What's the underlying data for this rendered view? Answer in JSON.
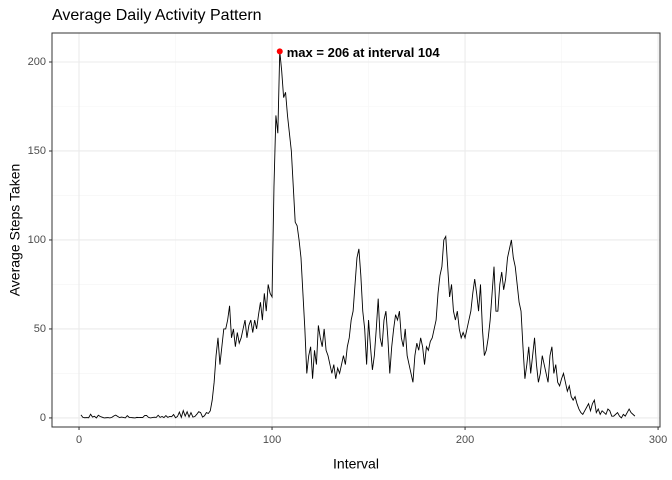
{
  "chart_data": {
    "type": "line",
    "title": "Average Daily Activity Pattern",
    "x_label": "Interval",
    "y_label": "Average Steps Taken",
    "annotation": "max = 206 at interval 104",
    "highlight_index": 103,
    "highlight_color": "#ff0000",
    "xlim": [
      -14,
      301
    ],
    "ylim": [
      -5.1,
      216.3
    ],
    "xticks": [
      0,
      100,
      200,
      300
    ],
    "yticks": [
      0,
      50,
      100,
      150,
      200
    ],
    "grid": true,
    "x": [
      1,
      2,
      3,
      4,
      5,
      6,
      7,
      8,
      9,
      10,
      11,
      12,
      13,
      14,
      15,
      16,
      17,
      18,
      19,
      20,
      21,
      22,
      23,
      24,
      25,
      26,
      27,
      28,
      29,
      30,
      31,
      32,
      33,
      34,
      35,
      36,
      37,
      38,
      39,
      40,
      41,
      42,
      43,
      44,
      45,
      46,
      47,
      48,
      49,
      50,
      51,
      52,
      53,
      54,
      55,
      56,
      57,
      58,
      59,
      60,
      61,
      62,
      63,
      64,
      65,
      66,
      67,
      68,
      69,
      70,
      71,
      72,
      73,
      74,
      75,
      76,
      77,
      78,
      79,
      80,
      81,
      82,
      83,
      84,
      85,
      86,
      87,
      88,
      89,
      90,
      91,
      92,
      93,
      94,
      95,
      96,
      97,
      98,
      99,
      100,
      101,
      102,
      103,
      104,
      105,
      106,
      107,
      108,
      109,
      110,
      111,
      112,
      113,
      114,
      115,
      116,
      117,
      118,
      119,
      120,
      121,
      122,
      123,
      124,
      125,
      126,
      127,
      128,
      129,
      130,
      131,
      132,
      133,
      134,
      135,
      136,
      137,
      138,
      139,
      140,
      141,
      142,
      143,
      144,
      145,
      146,
      147,
      148,
      149,
      150,
      151,
      152,
      153,
      154,
      155,
      156,
      157,
      158,
      159,
      160,
      161,
      162,
      163,
      164,
      165,
      166,
      167,
      168,
      169,
      170,
      171,
      172,
      173,
      174,
      175,
      176,
      177,
      178,
      179,
      180,
      181,
      182,
      183,
      184,
      185,
      186,
      187,
      188,
      189,
      190,
      191,
      192,
      193,
      194,
      195,
      196,
      197,
      198,
      199,
      200,
      201,
      202,
      203,
      204,
      205,
      206,
      207,
      208,
      209,
      210,
      211,
      212,
      213,
      214,
      215,
      216,
      217,
      218,
      219,
      220,
      221,
      222,
      223,
      224,
      225,
      226,
      227,
      228,
      229,
      230,
      231,
      232,
      233,
      234,
      235,
      236,
      237,
      238,
      239,
      240,
      241,
      242,
      243,
      244,
      245,
      246,
      247,
      248,
      249,
      250,
      251,
      252,
      253,
      254,
      255,
      256,
      257,
      258,
      259,
      260,
      261,
      262,
      263,
      264,
      265,
      266,
      267,
      268,
      269,
      270,
      271,
      272,
      273,
      274,
      275,
      276,
      277,
      278,
      279,
      280,
      281,
      282,
      283,
      284,
      285,
      286,
      287,
      288
    ],
    "series": [
      {
        "color": "#000000",
        "values": [
          1.7,
          0.3,
          0.1,
          0.2,
          0.1,
          2.1,
          0.5,
          0.9,
          0,
          1.5,
          0.8,
          0.4,
          0,
          0.1,
          0.2,
          0,
          0.3,
          1.1,
          1.6,
          0.9,
          0.2,
          0.5,
          0.3,
          0,
          1.3,
          0.3,
          0.2,
          0.1,
          0,
          0.3,
          0.2,
          0.3,
          0.2,
          1.3,
          1.4,
          0.3,
          0,
          0.2,
          0.4,
          0.3,
          1.5,
          0.3,
          0.8,
          0.2,
          1.3,
          0.3,
          0.8,
          0.7,
          1.9,
          0.1,
          0.8,
          3.3,
          0.3,
          4.1,
          1,
          3.5,
          0.5,
          3,
          0.5,
          0.8,
          2,
          3.5,
          3,
          0.5,
          1.2,
          3,
          2.5,
          4,
          10,
          20,
          35,
          45,
          30,
          40,
          50,
          50,
          55,
          63,
          45,
          50,
          40,
          48,
          42,
          45,
          50,
          55,
          45,
          52,
          55,
          48,
          55,
          50,
          58,
          65,
          55,
          70,
          60,
          75,
          70,
          68,
          130,
          170,
          160,
          206,
          195,
          180,
          183,
          170,
          160,
          150,
          130,
          110,
          108,
          100,
          90,
          70,
          50,
          25,
          35,
          40,
          22,
          38,
          30,
          52,
          45,
          40,
          50,
          38,
          35,
          30,
          25,
          30,
          22,
          28,
          25,
          30,
          35,
          30,
          40,
          45,
          55,
          60,
          75,
          90,
          95,
          80,
          60,
          50,
          30,
          55,
          40,
          27,
          35,
          50,
          67,
          45,
          40,
          55,
          60,
          45,
          25,
          40,
          50,
          58,
          55,
          60,
          45,
          40,
          50,
          35,
          30,
          25,
          20,
          35,
          42,
          38,
          45,
          40,
          30,
          40,
          38,
          43,
          45,
          50,
          55,
          70,
          80,
          85,
          100,
          102,
          85,
          68,
          75,
          60,
          55,
          60,
          50,
          45,
          48,
          45,
          50,
          55,
          60,
          70,
          78,
          70,
          60,
          75,
          50,
          35,
          38,
          45,
          55,
          70,
          85,
          60,
          60,
          75,
          82,
          72,
          78,
          90,
          95,
          100,
          90,
          85,
          75,
          65,
          60,
          40,
          22,
          30,
          40,
          25,
          35,
          45,
          30,
          20,
          25,
          35,
          30,
          25,
          20,
          35,
          40,
          25,
          30,
          20,
          18,
          22,
          25,
          20,
          15,
          18,
          12,
          10,
          12,
          8,
          5,
          3,
          2,
          4,
          6,
          8,
          4,
          8,
          10,
          3,
          5,
          2,
          4,
          3,
          2,
          5,
          4,
          1,
          1,
          2,
          3,
          1,
          0,
          2,
          1,
          3,
          5,
          3,
          2,
          1
        ]
      }
    ]
  }
}
